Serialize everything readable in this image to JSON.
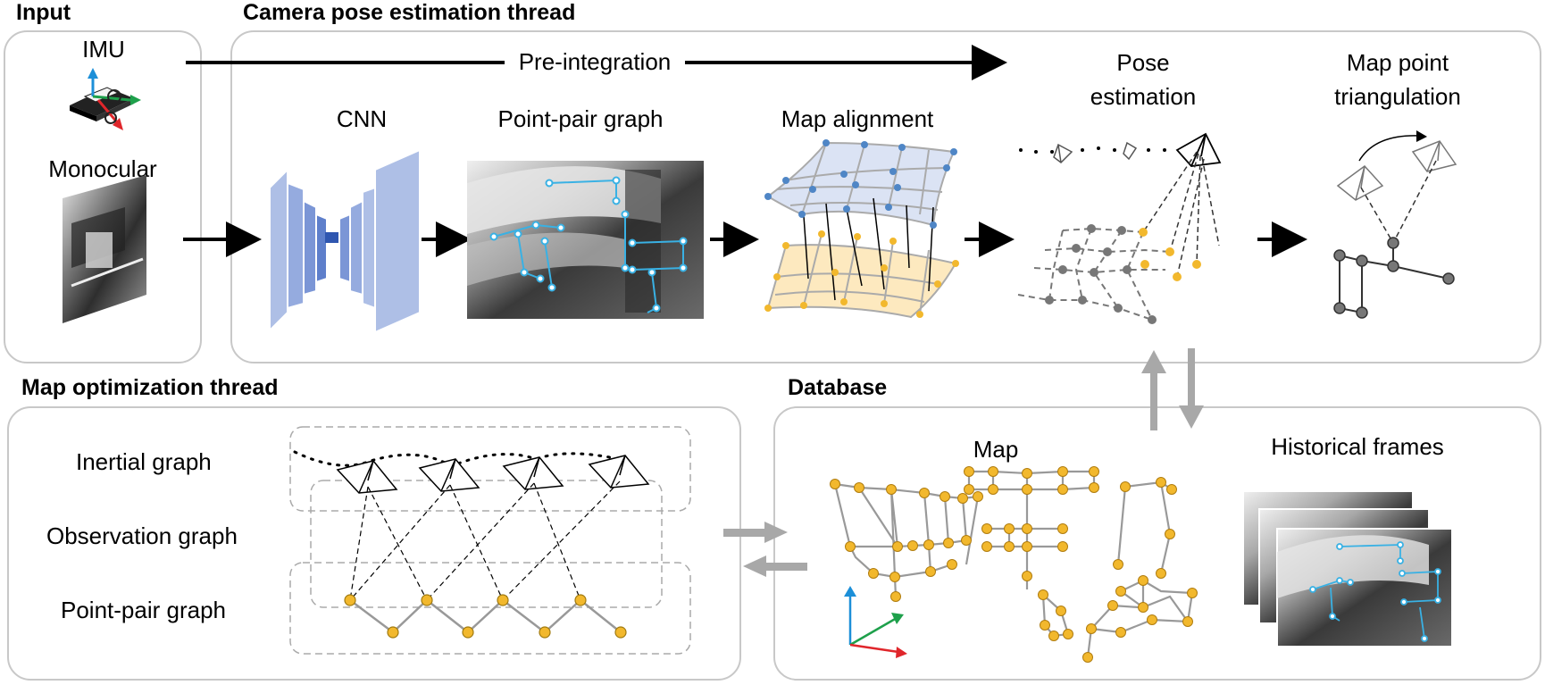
{
  "sections": {
    "input": "Input",
    "camera_thread": "Camera pose estimation thread",
    "map_opt_thread": "Map optimization thread",
    "database": "Database"
  },
  "input_labels": {
    "imu": "IMU",
    "monocular": "Monocular"
  },
  "camera_labels": {
    "preintegration": "Pre-integration",
    "cnn": "CNN",
    "point_pair_graph": "Point-pair graph",
    "map_alignment": "Map alignment",
    "pose_estimation_1": "Pose",
    "pose_estimation_2": "estimation",
    "triangulation_1": "Map point",
    "triangulation_2": "triangulation"
  },
  "map_opt_labels": {
    "inertial_graph": "Inertial graph",
    "observation_graph": "Observation graph",
    "point_pair_graph": "Point-pair graph"
  },
  "database_labels": {
    "map": "Map",
    "historical_frames": "Historical frames"
  },
  "colors": {
    "node_yellow": "#f2b82d",
    "node_blue": "#4f86c6",
    "node_gray": "#777777",
    "cnn_blue": "#aebfe6",
    "plane_blue": "#dbe3f4",
    "plane_yellow": "#fde9bf",
    "feature_cyan": "#39b1e4",
    "panel_border": "#c8c8c8",
    "axis_red": "#e0262b",
    "axis_green": "#1ea04b",
    "axis_blue": "#1c8fd8"
  },
  "icons": [
    "imu-sensor-icon",
    "camera-frustum-icon",
    "image-frame-icon",
    "coordinate-axes-icon"
  ]
}
